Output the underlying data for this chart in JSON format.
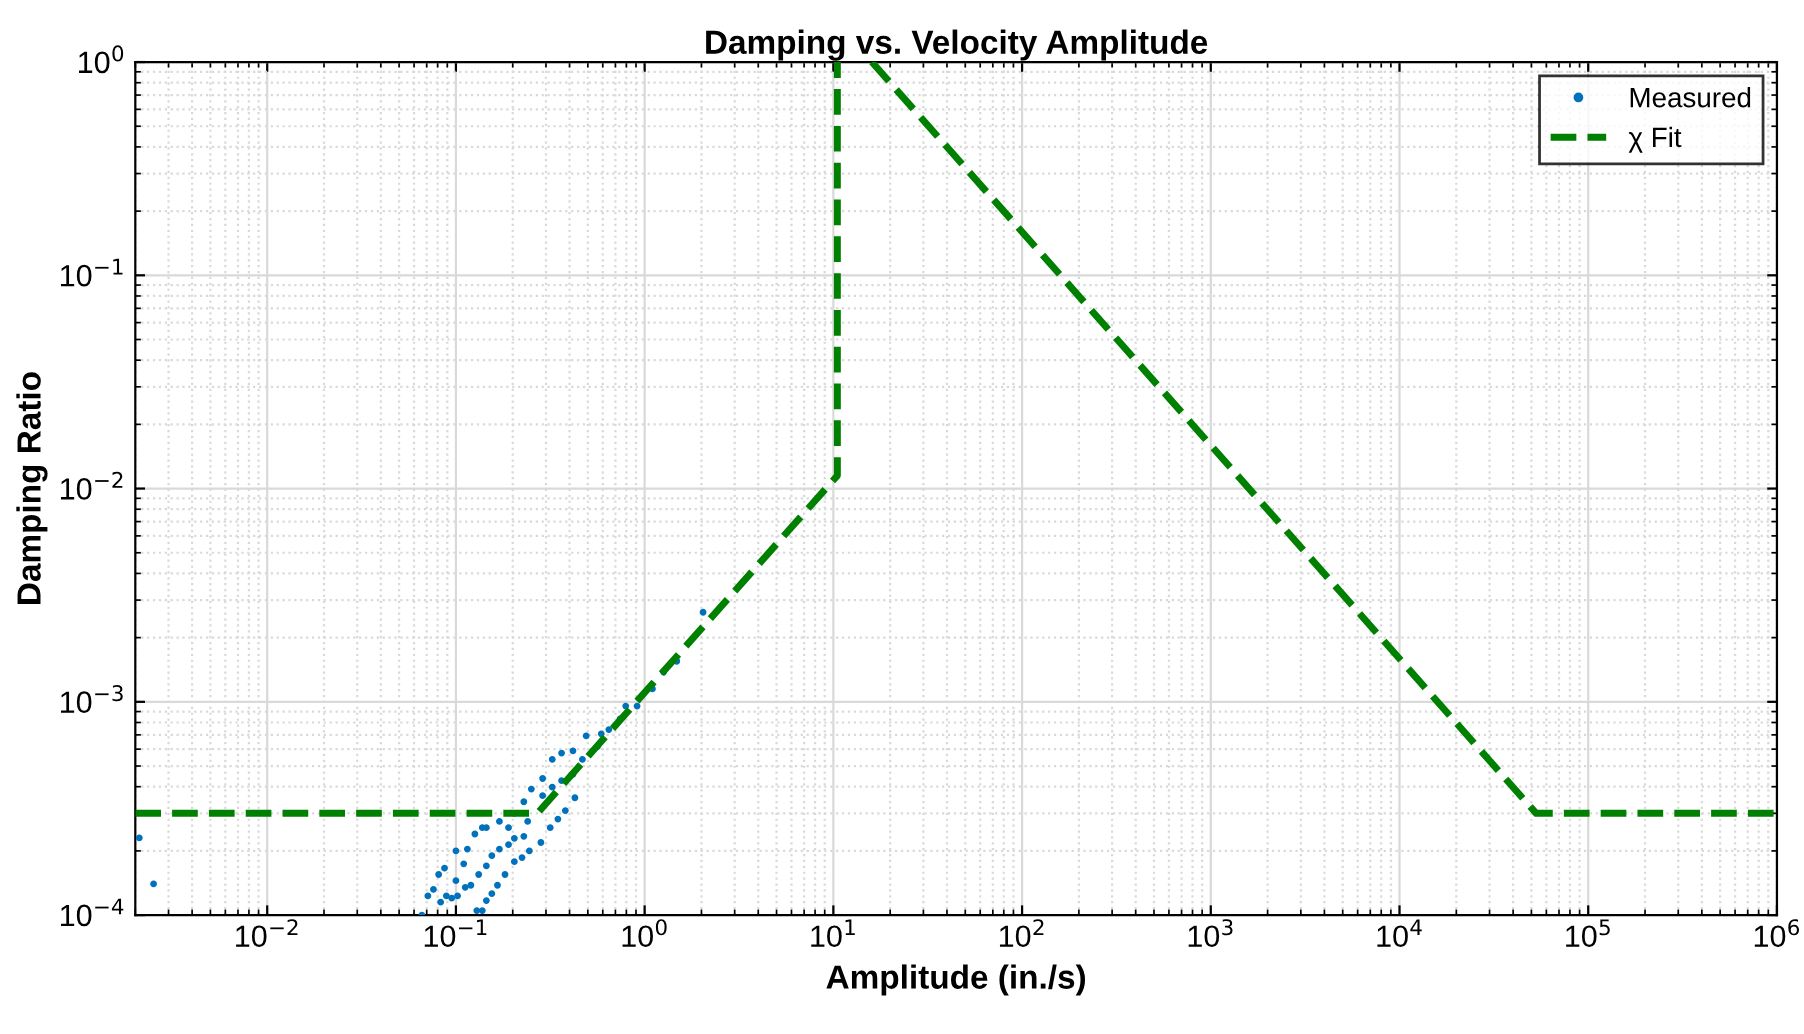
{
  "chart_data": {
    "type": "scatter",
    "title": "Damping vs. Velocity Amplitude",
    "xlabel": "Amplitude (in./s)",
    "ylabel": "Damping Ratio",
    "log": "xy",
    "grid": true,
    "legend": "top right",
    "xlim": [
      0.002,
      1000000
    ],
    "ylim": [
      0.0001,
      1
    ],
    "xticks": [
      {
        "value": 0.01,
        "label": "10$^{−2}$"
      },
      {
        "value": 0.1,
        "label": "10$^{−1}$"
      },
      {
        "value": 1,
        "label": "10$^{0}$"
      },
      {
        "value": 10,
        "label": "10$^{1}$"
      },
      {
        "value": 100,
        "label": "10$^{2}$"
      },
      {
        "value": 1000,
        "label": "10$^{3}$"
      },
      {
        "value": 10000,
        "label": "10$^{4}$"
      },
      {
        "value": 100000,
        "label": "10$^{5}$"
      },
      {
        "value": 1000000,
        "label": "10$^{6}$"
      }
    ],
    "yticks": [
      {
        "value": 0.0001,
        "label": "10$^{−4}$"
      },
      {
        "value": 0.001,
        "label": "10$^{−3}$"
      },
      {
        "value": 0.01,
        "label": "10$^{−2}$"
      },
      {
        "value": 0.1,
        "label": "10$^{−1}$"
      },
      {
        "value": 1,
        "label": "10$^{0}$"
      }
    ],
    "series": [
      {
        "name": "Measured",
        "marker": "circle",
        "color": "#0072bd",
        "x": [
          0.0021,
          0.0025,
          0.066,
          0.071,
          0.076,
          0.081,
          0.087,
          0.083,
          0.089,
          0.095,
          0.1,
          0.1,
          0.11,
          0.115,
          0.126,
          0.138,
          0.145,
          0.102,
          0.112,
          0.12,
          0.132,
          0.145,
          0.155,
          0.17,
          0.19,
          0.204,
          0.229,
          0.24,
          0.17,
          0.19,
          0.204,
          0.229,
          0.251,
          0.288,
          0.324,
          0.363,
          0.417,
          0.288,
          0.324,
          0.363,
          0.417,
          0.129,
          0.138,
          0.145,
          0.155,
          0.166,
          0.182,
          0.204,
          0.224,
          0.245,
          0.282,
          0.316,
          0.347,
          0.38,
          0.427,
          0.468,
          0.49,
          0.562,
          0.589,
          0.646,
          0.741,
          0.794,
          0.912,
          1.1,
          1.26,
          1.48,
          2.04
        ],
        "values": [
          0.00023,
          0.00014,
          0.0001,
          0.000123,
          0.000132,
          0.000155,
          0.000166,
          0.000115,
          0.000123,
          0.00012,
          0.0002,
          0.000145,
          0.000174,
          0.000204,
          0.00024,
          0.000257,
          0.000257,
          0.000123,
          0.000135,
          0.000138,
          0.000155,
          0.00017,
          0.00019,
          0.000204,
          0.000214,
          0.000229,
          0.000234,
          0.000275,
          0.000275,
          0.000257,
          0.0003,
          0.00034,
          0.00039,
          0.000437,
          0.000537,
          0.000575,
          0.000589,
          0.000363,
          0.000398,
          0.000427,
          0.000457,
          0.000105,
          0.000105,
          0.000117,
          0.000126,
          0.000138,
          0.000155,
          0.000178,
          0.000186,
          0.0002,
          0.000219,
          0.000257,
          0.000282,
          0.000309,
          0.000355,
          0.000537,
          0.000692,
          0.000617,
          0.000708,
          0.000741,
          0.000832,
          0.000955,
          0.000955,
          0.00115,
          0.00138,
          0.00155,
          0.00263
        ]
      },
      {
        "name": "χ Fit",
        "type": "line",
        "line_style": "dashed",
        "marker": "none",
        "color": "#008000",
        "x": [
          0.002,
          0.27,
          10.5,
          10.5,
          13,
          16,
          53000,
          1000000
        ],
        "values": [
          0.0003,
          0.0003,
          0.0115,
          1,
          null,
          1,
          0.0003,
          0.0003
        ]
      }
    ]
  }
}
